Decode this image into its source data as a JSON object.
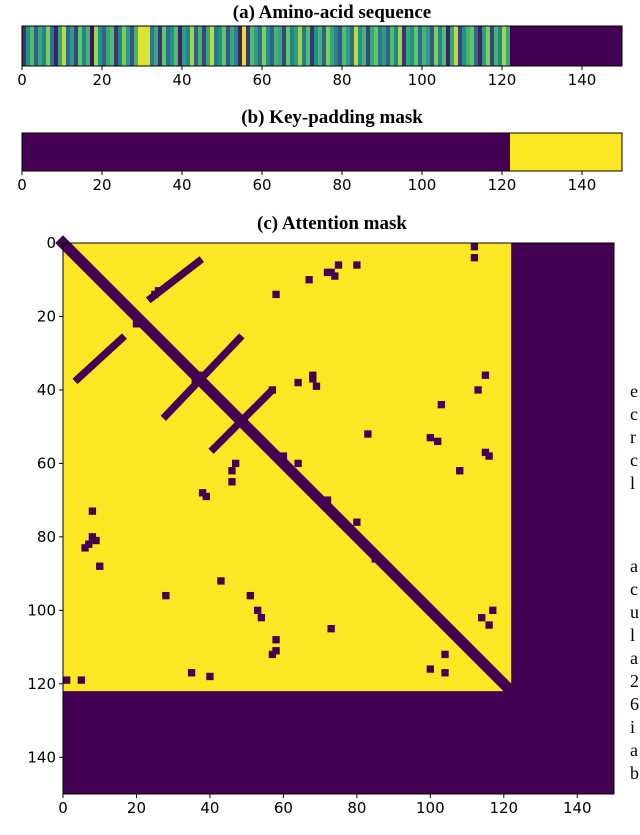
{
  "chart_data": [
    {
      "type": "strip",
      "title": "(a) Amino-acid sequence",
      "colormap": "viridis",
      "vlim": [
        0,
        20
      ],
      "values": [
        3,
        10,
        14,
        6,
        12,
        9,
        16,
        8,
        2,
        12,
        18,
        7,
        11,
        4,
        15,
        9,
        13,
        1,
        17,
        10,
        6,
        12,
        14,
        3,
        9,
        16,
        11,
        5,
        13,
        19,
        19,
        19,
        8,
        12,
        3,
        15,
        7,
        10,
        14,
        2,
        11,
        9,
        17,
        6,
        13,
        4,
        12,
        18,
        8,
        10,
        15,
        5,
        12,
        9,
        2,
        19,
        3,
        14,
        11,
        7,
        16,
        10,
        6,
        13,
        12,
        4,
        15,
        9,
        11,
        17,
        8,
        14,
        3,
        10,
        13,
        6,
        16,
        12,
        9,
        5,
        14,
        11,
        7,
        18,
        10,
        13,
        4,
        12,
        15,
        8,
        11,
        6,
        14,
        9,
        17,
        3,
        12,
        10,
        15,
        7,
        13,
        11,
        5,
        16,
        9,
        14,
        2,
        12,
        18,
        4,
        10,
        13,
        15,
        7,
        2,
        11,
        16,
        4,
        13,
        9,
        17,
        12,
        0,
        0,
        0,
        0,
        0,
        0,
        0,
        0,
        0,
        0,
        0,
        0,
        0,
        0,
        0,
        0,
        0,
        0,
        0,
        0,
        0,
        0,
        0,
        0,
        0,
        0,
        0,
        0
      ],
      "xlim": [
        0,
        150
      ],
      "xticks": [
        0,
        20,
        40,
        60,
        80,
        100,
        120,
        140
      ]
    },
    {
      "type": "strip",
      "title": "(b) Key-padding mask",
      "colormap": "viridis",
      "vlim": [
        0,
        1
      ],
      "values": [
        0,
        0,
        0,
        0,
        0,
        0,
        0,
        0,
        0,
        0,
        0,
        0,
        0,
        0,
        0,
        0,
        0,
        0,
        0,
        0,
        0,
        0,
        0,
        0,
        0,
        0,
        0,
        0,
        0,
        0,
        0,
        0,
        0,
        0,
        0,
        0,
        0,
        0,
        0,
        0,
        0,
        0,
        0,
        0,
        0,
        0,
        0,
        0,
        0,
        0,
        0,
        0,
        0,
        0,
        0,
        0,
        0,
        0,
        0,
        0,
        0,
        0,
        0,
        0,
        0,
        0,
        0,
        0,
        0,
        0,
        0,
        0,
        0,
        0,
        0,
        0,
        0,
        0,
        0,
        0,
        0,
        0,
        0,
        0,
        0,
        0,
        0,
        0,
        0,
        0,
        0,
        0,
        0,
        0,
        0,
        0,
        0,
        0,
        0,
        0,
        0,
        0,
        0,
        0,
        0,
        0,
        0,
        0,
        0,
        0,
        0,
        0,
        0,
        0,
        0,
        0,
        0,
        0,
        0,
        0,
        0,
        0,
        1,
        1,
        1,
        1,
        1,
        1,
        1,
        1,
        1,
        1,
        1,
        1,
        1,
        1,
        1,
        1,
        1,
        1,
        1,
        1,
        1,
        1,
        1,
        1,
        1,
        1,
        1,
        1
      ],
      "xlim": [
        0,
        150
      ],
      "xticks": [
        0,
        20,
        40,
        60,
        80,
        100,
        120,
        140
      ]
    },
    {
      "type": "mask",
      "title": "(c) Attention mask",
      "colormap": "viridis",
      "valid_length": 122,
      "segments": [
        [
          0,
          0,
          122,
          122,
          3
        ],
        [
          37,
          5,
          24,
          15,
          2
        ],
        [
          16,
          26,
          4,
          37,
          2
        ],
        [
          48,
          26,
          28,
          47,
          2
        ],
        [
          56,
          41,
          41,
          56,
          2
        ]
      ],
      "points": [
        [
          75,
          6
        ],
        [
          73,
          8
        ],
        [
          80,
          6
        ],
        [
          74,
          9
        ],
        [
          112,
          1
        ],
        [
          112,
          4
        ],
        [
          72,
          8
        ],
        [
          67,
          10
        ],
        [
          58,
          14
        ],
        [
          26,
          13
        ],
        [
          25,
          14
        ],
        [
          68,
          36
        ],
        [
          64,
          38
        ],
        [
          69,
          39
        ],
        [
          68,
          37
        ],
        [
          57,
          40
        ],
        [
          115,
          36
        ],
        [
          113,
          40
        ],
        [
          83,
          52
        ],
        [
          103,
          44
        ],
        [
          100,
          53
        ],
        [
          102,
          54
        ],
        [
          115,
          57
        ],
        [
          116,
          58
        ],
        [
          108,
          62
        ],
        [
          47,
          60
        ],
        [
          46,
          62
        ],
        [
          39,
          69
        ],
        [
          38,
          68
        ],
        [
          46,
          65
        ],
        [
          8,
          73
        ],
        [
          8,
          80
        ],
        [
          7,
          82
        ],
        [
          9,
          81
        ],
        [
          6,
          83
        ],
        [
          10,
          88
        ],
        [
          43,
          92
        ],
        [
          28,
          96
        ],
        [
          51,
          96
        ],
        [
          53,
          100
        ],
        [
          54,
          102
        ],
        [
          73,
          105
        ],
        [
          116,
          104
        ],
        [
          117,
          100
        ],
        [
          114,
          102
        ],
        [
          58,
          108
        ],
        [
          58,
          111
        ],
        [
          57,
          112
        ],
        [
          104,
          112
        ],
        [
          100,
          116
        ],
        [
          104,
          117
        ],
        [
          35,
          117
        ],
        [
          40,
          118
        ],
        [
          1,
          119
        ],
        [
          5,
          119
        ],
        [
          60,
          58
        ],
        [
          64,
          60
        ],
        [
          72,
          70
        ],
        [
          80,
          76
        ],
        [
          85,
          86
        ],
        [
          92,
          92
        ],
        [
          20,
          22
        ],
        [
          23,
          23
        ],
        [
          37,
          36
        ],
        [
          36,
          38
        ]
      ],
      "xlim": [
        0,
        150
      ],
      "ylim": [
        0,
        150
      ],
      "xticks": [
        0,
        20,
        40,
        60,
        80,
        100,
        120,
        140
      ],
      "yticks": [
        0,
        20,
        40,
        60,
        80,
        100,
        120,
        140
      ]
    }
  ],
  "side_text": [
    "e",
    "c",
    "r",
    "c",
    "l",
    "a",
    "c",
    "u",
    "l",
    "a",
    "2",
    "6",
    "i",
    "a",
    "b"
  ]
}
